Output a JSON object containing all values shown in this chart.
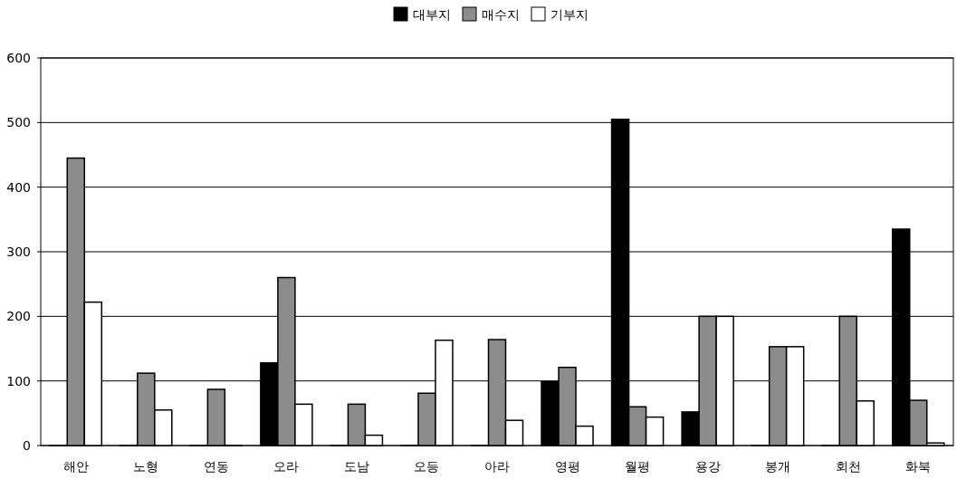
{
  "chart_data": {
    "type": "bar",
    "categories": [
      "해안",
      "노형",
      "연동",
      "오라",
      "도남",
      "오등",
      "아라",
      "영평",
      "월평",
      "용강",
      "봉개",
      "회천",
      "화북"
    ],
    "series": [
      {
        "name": "대부지",
        "color": "#000000",
        "values": [
          0,
          0,
          0,
          128,
          0,
          0,
          0,
          99,
          505,
          52,
          0,
          0,
          335
        ]
      },
      {
        "name": "매수지",
        "color": "#8c8c8c",
        "values": [
          445,
          112,
          87,
          260,
          64,
          81,
          164,
          121,
          60,
          200,
          153,
          200,
          70
        ]
      },
      {
        "name": "기부지",
        "color": "#ffffff",
        "values": [
          222,
          55,
          0,
          64,
          16,
          163,
          39,
          30,
          44,
          200,
          153,
          69,
          4
        ]
      }
    ],
    "ylim": [
      0,
      600
    ],
    "yticks": [
      0,
      100,
      200,
      300,
      400,
      500,
      600
    ],
    "grid": "y",
    "legend": "top"
  }
}
